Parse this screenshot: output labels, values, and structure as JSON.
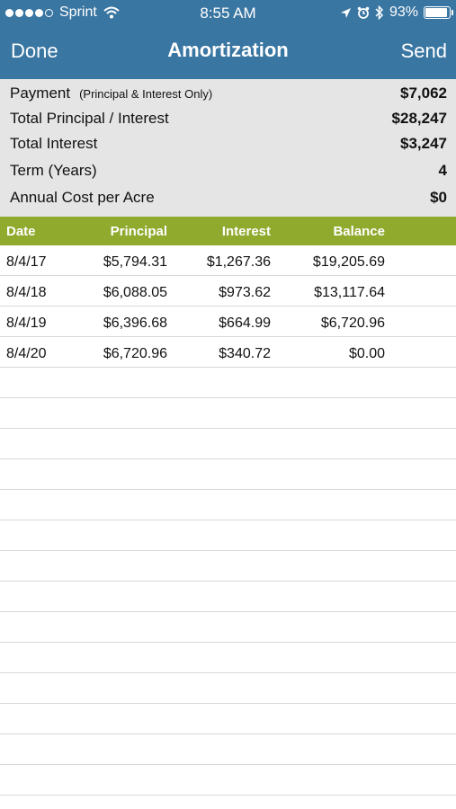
{
  "status": {
    "carrier": "Sprint",
    "time": "8:55 AM",
    "battery": "93%",
    "battery_level": 0.93
  },
  "nav": {
    "left_button": "Done",
    "title": "Amortization",
    "right_button": "Send"
  },
  "summary": [
    {
      "label": "Payment",
      "note": "(Principal & Interest Only)",
      "value": "$7,062"
    },
    {
      "label": "Total Principal / Interest",
      "note": "",
      "value": "$28,247"
    },
    {
      "label": "Total Interest",
      "note": "",
      "value": "$3,247"
    },
    {
      "label": "Term (Years)",
      "note": "",
      "value": "4"
    },
    {
      "label": "Annual Cost per Acre",
      "note": "",
      "value": "$0"
    }
  ],
  "table": {
    "headers": [
      "Date",
      "Principal",
      "Interest",
      "Balance"
    ],
    "rows": [
      [
        "8/4/17",
        "$5,794.31",
        "$1,267.36",
        "$19,205.69"
      ],
      [
        "8/4/18",
        "$6,088.05",
        "$973.62",
        "$13,117.64"
      ],
      [
        "8/4/19",
        "$6,396.68",
        "$664.99",
        "$6,720.96"
      ],
      [
        "8/4/20",
        "$6,720.96",
        "$340.72",
        "$0.00"
      ]
    ]
  }
}
